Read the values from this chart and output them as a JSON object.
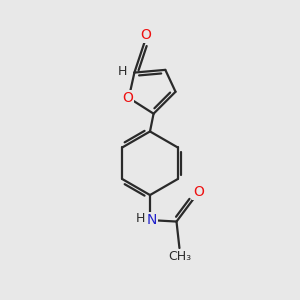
{
  "background_color": "#e8e8e8",
  "bond_color": "#2a2a2a",
  "bond_width": 1.6,
  "atom_colors": {
    "O": "#ee1111",
    "N": "#2222cc",
    "C": "#2a2a2a",
    "H": "#2a2a2a"
  },
  "font_size": 10,
  "font_size_small": 9
}
